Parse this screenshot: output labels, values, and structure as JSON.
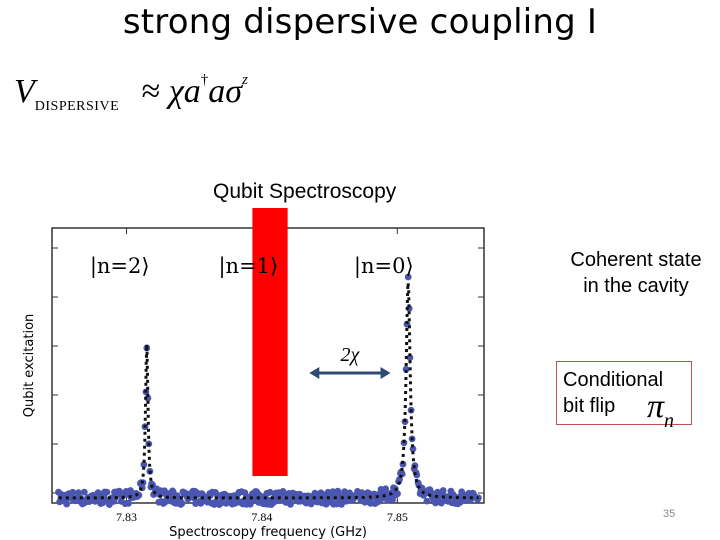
{
  "slide": {
    "title": "strong dispersive coupling I",
    "formula": {
      "lhs": "V",
      "subscript": "DISPERSIVE",
      "approx": "≈",
      "rhs_parts": [
        "χ",
        "a",
        "†",
        "a",
        "σ",
        "z"
      ]
    },
    "spectroscopy_label": "Qubit Spectroscopy",
    "coherent_label": [
      "Coherent state",
      "in the cavity"
    ],
    "conditional_label": [
      "Conditional",
      "bit flip"
    ],
    "pi_symbol": "π",
    "pi_subscript": "n",
    "page_number": "35",
    "colors": {
      "highlight": "#ff0000",
      "data": "#4a56b0",
      "arrow": "#2f4a73",
      "box_border": "#c0504d"
    }
  },
  "chart_data": {
    "type": "scatter",
    "title": "",
    "xlabel": "Spectroscopy frequency (GHz)",
    "ylabel": "Qubit excitation",
    "xlim": [
      7.8245,
      7.8564
    ],
    "ylim": [
      0,
      1.1
    ],
    "x_ticks": [
      7.83,
      7.84,
      7.85
    ],
    "x_tick_labels": [
      "7.83",
      "7.84",
      "7.85"
    ],
    "y_tick_count": 6,
    "annotations": [
      {
        "text": "|n=2⟩",
        "x": 7.8295,
        "y": 0.92
      },
      {
        "text": "|n=1⟩",
        "x": 7.839,
        "y": 0.92
      },
      {
        "text": "|n=0⟩",
        "x": 7.849,
        "y": 0.92
      },
      {
        "text": "2χ",
        "x": 7.8457,
        "y": 0.6
      }
    ],
    "arrow": {
      "from": 7.8435,
      "to": 7.8495,
      "y": 0.52,
      "label": "2χ"
    },
    "highlight_band": {
      "from": 7.8393,
      "to": 7.8419
    },
    "series": [
      {
        "peaks": [
          {
            "center": 7.8315,
            "height": 0.62,
            "width": 0.00011
          },
          {
            "center": 7.8508,
            "height": 0.87,
            "width": 0.00018
          }
        ],
        "baseline": 0.02
      }
    ]
  }
}
